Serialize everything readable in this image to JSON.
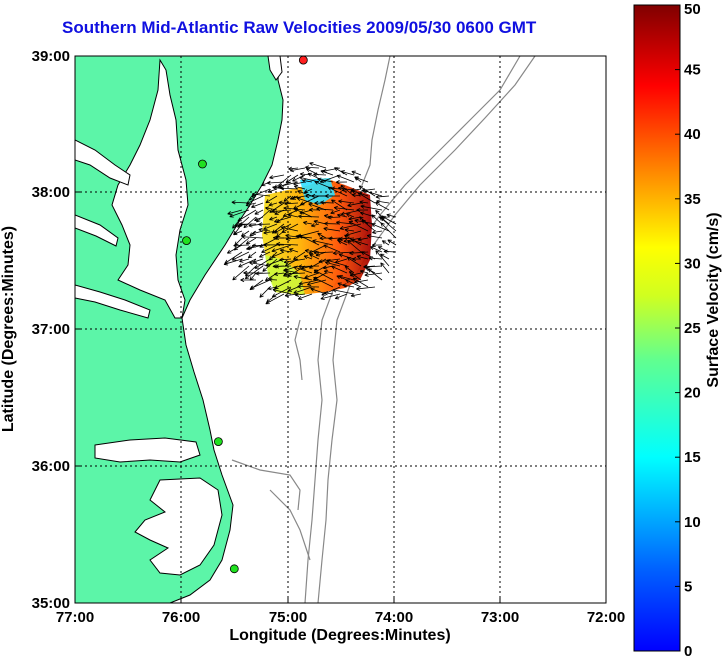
{
  "title": "Southern Mid-Atlantic Raw Velocities 2009/05/30 0600 GMT",
  "map": {
    "xlabel": "Longitude (Degrees:Minutes)",
    "ylabel": "Latitude (Degrees:Minutes)",
    "lon_ticks": [
      "77:00",
      "76:00",
      "75:00",
      "74:00",
      "73:00",
      "72:00"
    ],
    "lat_ticks": [
      "39:00",
      "38:00",
      "37:00",
      "36:00",
      "35:00"
    ],
    "lon_range": [
      -77,
      -72
    ],
    "lat_range": [
      35,
      39
    ],
    "land_color": "#5cf5a8",
    "coast_color": "#000000",
    "bathy_color": "#888888",
    "grid_lines": "dotted"
  },
  "colorbar": {
    "label": "Surface Velocity (cm/s)",
    "ticks": [
      "0",
      "5",
      "10",
      "15",
      "20",
      "25",
      "30",
      "35",
      "40",
      "45",
      "50"
    ],
    "range": [
      0,
      50
    ],
    "colormap": "jet"
  },
  "stations": [
    {
      "lon": -74.85,
      "lat": 38.97,
      "color": "#ff2020"
    },
    {
      "lon": -75.8,
      "lat": 38.21,
      "color": "#20e020"
    },
    {
      "lon": -75.95,
      "lat": 37.65,
      "color": "#20e020"
    },
    {
      "lon": -75.65,
      "lat": 36.18,
      "color": "#20e020"
    },
    {
      "lon": -75.5,
      "lat": 35.25,
      "color": "#20e020"
    }
  ]
}
